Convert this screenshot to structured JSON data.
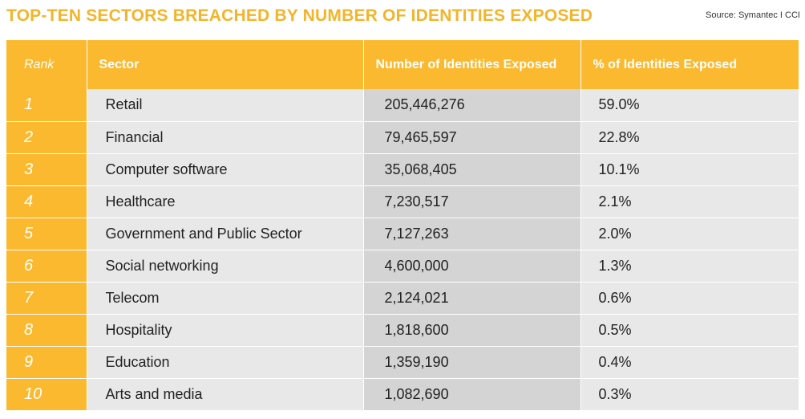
{
  "header": {
    "title": "TOP-TEN SECTORS BREACHED BY NUMBER OF IDENTITIES EXPOSED",
    "source": "Source: Symantec  I  CCI"
  },
  "chart_data": {
    "type": "table",
    "columns": [
      "Rank",
      "Sector",
      "Number of Identities Exposed",
      "% of Identities Exposed"
    ],
    "rows": [
      {
        "rank": "1",
        "sector": "Retail",
        "count": "205,446,276",
        "pct": "59.0%"
      },
      {
        "rank": "2",
        "sector": "Financial",
        "count": "79,465,597",
        "pct": "22.8%"
      },
      {
        "rank": "3",
        "sector": "Computer software",
        "count": "35,068,405",
        "pct": "10.1%"
      },
      {
        "rank": "4",
        "sector": "Healthcare",
        "count": "7,230,517",
        "pct": "2.1%"
      },
      {
        "rank": "5",
        "sector": "Government and Public Sector",
        "count": "7,127,263",
        "pct": "2.0%"
      },
      {
        "rank": "6",
        "sector": "Social networking",
        "count": "4,600,000",
        "pct": "1.3%"
      },
      {
        "rank": "7",
        "sector": "Telecom",
        "count": "2,124,021",
        "pct": "0.6%"
      },
      {
        "rank": "8",
        "sector": "Hospitality",
        "count": "1,818,600",
        "pct": "0.5%"
      },
      {
        "rank": "9",
        "sector": "Education",
        "count": "1,359,190",
        "pct": "0.4%"
      },
      {
        "rank": "10",
        "sector": "Arts and media",
        "count": "1,082,690",
        "pct": "0.3%"
      }
    ]
  },
  "colors": {
    "accent": "#fbb930",
    "title": "#f4b42a",
    "row_light": "#e8e8e8",
    "row_dark": "#d4d4d4"
  }
}
